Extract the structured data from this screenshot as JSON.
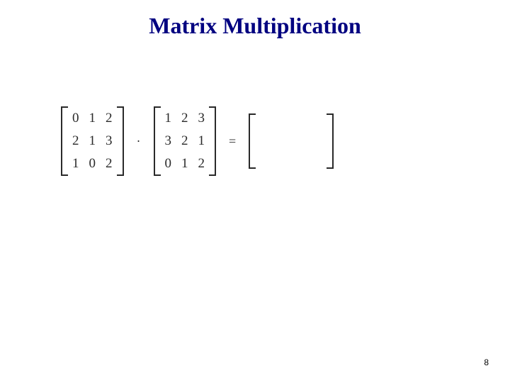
{
  "title": "Matrix Multiplication",
  "page_number": "8",
  "colors": {
    "title": "#000080",
    "text": "#2a2a2a",
    "background": "#ffffff"
  },
  "typography": {
    "title_fontsize_pt": 24,
    "title_weight": "bold",
    "body_fontsize_pt": 14,
    "font_family": "Times New Roman"
  },
  "equation": {
    "type": "matrix-multiplication",
    "matrix_a": {
      "rows": 3,
      "cols": 3,
      "values": [
        [
          0,
          1,
          2
        ],
        [
          2,
          1,
          3
        ],
        [
          1,
          0,
          2
        ]
      ]
    },
    "operator_dot": "·",
    "matrix_b": {
      "rows": 3,
      "cols": 3,
      "values": [
        [
          1,
          2,
          3
        ],
        [
          3,
          2,
          1
        ],
        [
          0,
          1,
          2
        ]
      ]
    },
    "operator_eq": "=",
    "result_empty": true
  }
}
